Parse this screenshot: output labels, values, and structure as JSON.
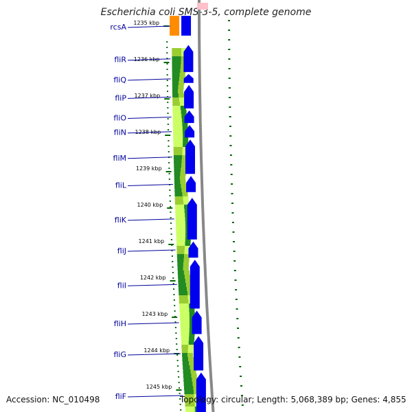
{
  "title": "Escherichia coli SMS-3-5, complete genome",
  "footer": {
    "accession": "Accession: NC_010498",
    "summary": "Topology: circular; Length: 5,068,389 bp; Genes: 4,855"
  },
  "ticks": [
    {
      "label": "1235 kbp",
      "kbp": 1235
    },
    {
      "label": "1236 kbp",
      "kbp": 1236
    },
    {
      "label": "1237 kbp",
      "kbp": 1237
    },
    {
      "label": "1238 kbp",
      "kbp": 1238
    },
    {
      "label": "1239 kbp",
      "kbp": 1239
    },
    {
      "label": "1240 kbp",
      "kbp": 1240
    },
    {
      "label": "1241 kbp",
      "kbp": 1241
    },
    {
      "label": "1242 kbp",
      "kbp": 1242
    },
    {
      "label": "1243 kbp",
      "kbp": 1243
    },
    {
      "label": "1244 kbp",
      "kbp": 1244
    },
    {
      "label": "1245 kbp",
      "kbp": 1245
    }
  ],
  "genes": [
    {
      "name": "rcsA",
      "start_kbp": 1234.7,
      "end_kbp": 1235.3,
      "color": "#ff8c00"
    },
    {
      "name": "fliR",
      "start_kbp": 1235.5,
      "end_kbp": 1236.3,
      "color": "#0000ee"
    },
    {
      "name": "fliQ",
      "start_kbp": 1236.3,
      "end_kbp": 1236.6,
      "color": "#0000ee"
    },
    {
      "name": "fliP",
      "start_kbp": 1236.6,
      "end_kbp": 1237.3,
      "color": "#0000ee"
    },
    {
      "name": "fliO",
      "start_kbp": 1237.3,
      "end_kbp": 1237.7,
      "color": "#0000ee"
    },
    {
      "name": "fliN",
      "start_kbp": 1237.7,
      "end_kbp": 1238.1,
      "color": "#0000ee"
    },
    {
      "name": "fliM",
      "start_kbp": 1238.1,
      "end_kbp": 1239.1,
      "color": "#0000ee"
    },
    {
      "name": "fliL",
      "start_kbp": 1239.1,
      "end_kbp": 1239.6,
      "color": "#0000ee"
    },
    {
      "name": "fliK",
      "start_kbp": 1239.7,
      "end_kbp": 1240.9,
      "color": "#0000ee"
    },
    {
      "name": "fliJ",
      "start_kbp": 1240.9,
      "end_kbp": 1241.4,
      "color": "#0000ee"
    },
    {
      "name": "fliI",
      "start_kbp": 1241.4,
      "end_kbp": 1242.8,
      "color": "#0000ee"
    },
    {
      "name": "fliH",
      "start_kbp": 1242.8,
      "end_kbp": 1243.5,
      "color": "#0000ee"
    },
    {
      "name": "fliG",
      "start_kbp": 1243.5,
      "end_kbp": 1244.5,
      "color": "#0000ee"
    },
    {
      "name": "fliF",
      "start_kbp": 1244.5,
      "end_kbp": 1245.8,
      "color": "#0000ee"
    }
  ],
  "colors": {
    "gene_label": "#000099",
    "backbone": "#888888",
    "tick": "#006600",
    "gc_dark": "#228b22",
    "gc_light": "#9acd32",
    "gc_pale": "#ccff66"
  }
}
